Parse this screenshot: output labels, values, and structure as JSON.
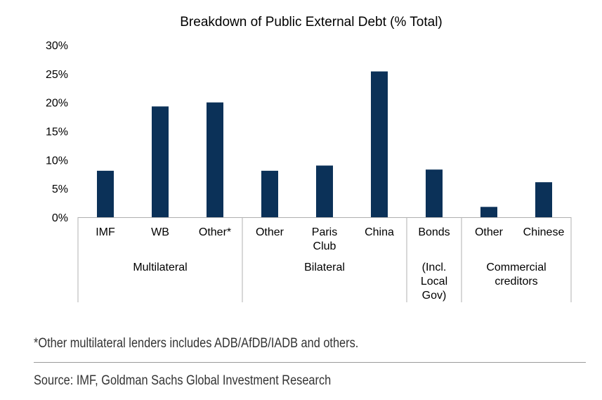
{
  "chart_data": {
    "type": "bar",
    "title": "Breakdown of Public External Debt (% Total)",
    "xlabel": "",
    "ylabel": "",
    "ylim": [
      0,
      30
    ],
    "yticks": [
      0,
      5,
      10,
      15,
      20,
      25,
      30
    ],
    "ytick_labels": [
      "0%",
      "5%",
      "10%",
      "15%",
      "20%",
      "25%",
      "30%"
    ],
    "categories": [
      {
        "lines": [
          "IMF"
        ]
      },
      {
        "lines": [
          "WB"
        ]
      },
      {
        "lines": [
          "Other*"
        ]
      },
      {
        "lines": [
          "Other"
        ]
      },
      {
        "lines": [
          "Paris",
          "Club"
        ]
      },
      {
        "lines": [
          "China"
        ]
      },
      {
        "lines": [
          "Bonds"
        ]
      },
      {
        "lines": [
          "Other"
        ]
      },
      {
        "lines": [
          "Chinese"
        ]
      }
    ],
    "values": [
      8.1,
      19.3,
      20.0,
      8.1,
      9.0,
      25.4,
      8.3,
      1.8,
      6.1
    ],
    "groups": [
      {
        "lines": [
          "Multilateral"
        ],
        "count": 3
      },
      {
        "lines": [
          "Bilateral"
        ],
        "count": 3
      },
      {
        "lines": [
          "(Incl.",
          "Local",
          "Gov)"
        ],
        "count": 1
      },
      {
        "lines": [
          "Commercial",
          "creditors"
        ],
        "count": 2
      }
    ],
    "bar_color": "#0b3158",
    "grid": false,
    "legend": "none"
  },
  "footnote": "*Other multilateral lenders includes ADB/AfDB/IADB and others.",
  "source": "Source: IMF, Goldman Sachs Global Investment Research"
}
